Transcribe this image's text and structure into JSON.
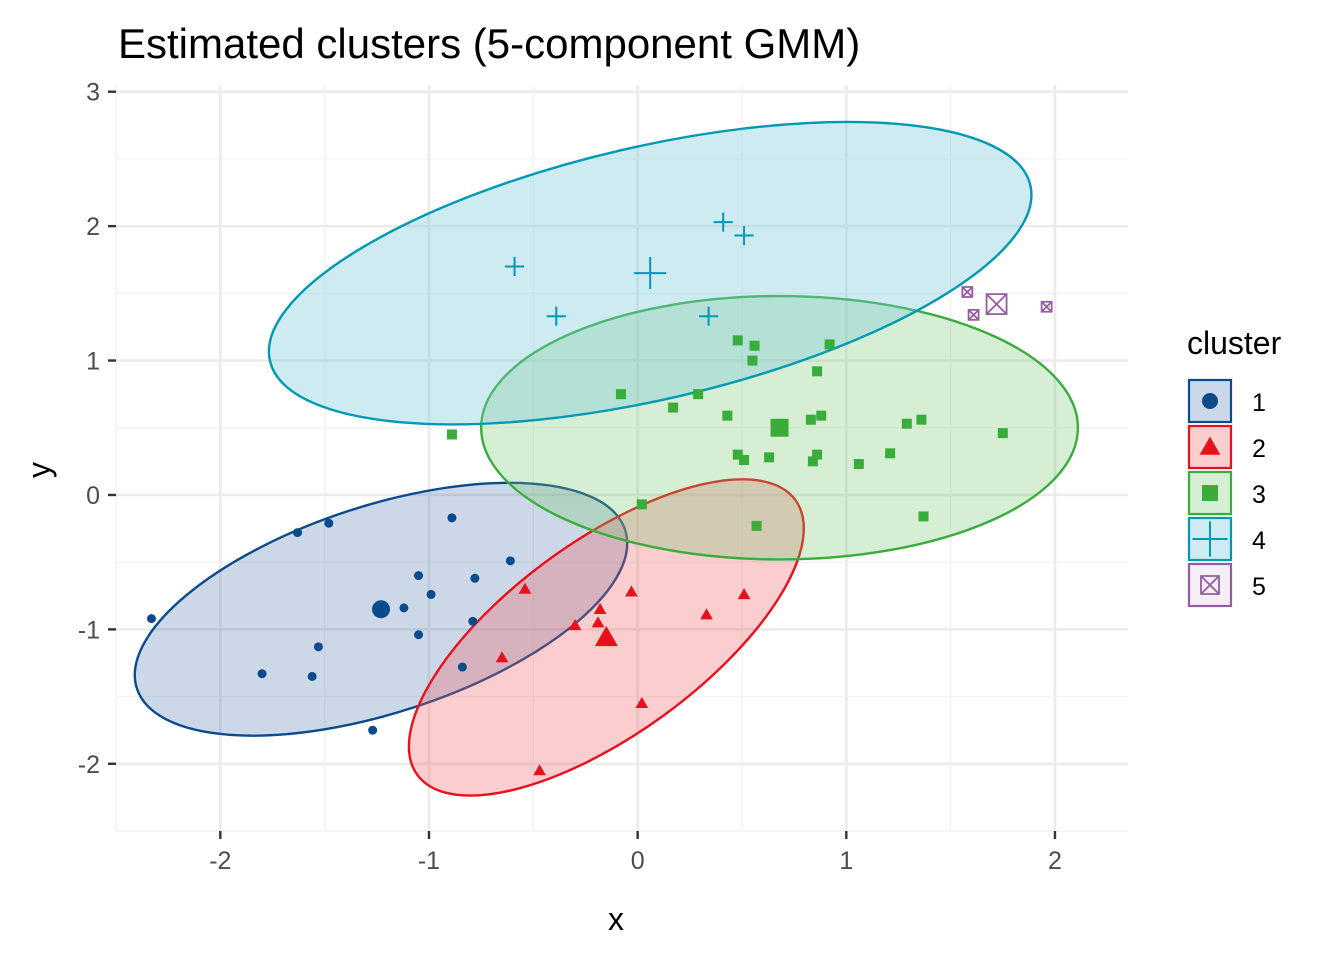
{
  "chart_data": {
    "type": "scatter",
    "title": "Estimated clusters (5-component GMM)",
    "xlabel": "x",
    "ylabel": "y",
    "xlim": [
      -2.5,
      2.35
    ],
    "ylim": [
      -2.5,
      3.05
    ],
    "x_ticks": [
      -2,
      -1,
      0,
      1,
      2
    ],
    "y_ticks": [
      -2,
      -1,
      0,
      1,
      2,
      3
    ],
    "grid": true,
    "legend": {
      "title": "cluster",
      "position": "right"
    },
    "series": [
      {
        "name": "1",
        "color": "#0b4a8b",
        "fill": "rgba(43,91,160,0.24)",
        "shape": "circle",
        "center": [
          -1.23,
          -0.85
        ],
        "ellipse": {
          "rx": 1.23,
          "ry": 0.77,
          "angle": 18
        },
        "points": [
          [
            -2.33,
            -0.92
          ],
          [
            -1.8,
            -1.33
          ],
          [
            -1.63,
            -0.28
          ],
          [
            -1.56,
            -1.35
          ],
          [
            -1.53,
            -1.13
          ],
          [
            -1.48,
            -0.21
          ],
          [
            -1.27,
            -1.75
          ],
          [
            -1.12,
            -0.84
          ],
          [
            -1.05,
            -0.6
          ],
          [
            -1.05,
            -1.04
          ],
          [
            -0.99,
            -0.74
          ],
          [
            -0.89,
            -0.17
          ],
          [
            -0.84,
            -1.28
          ],
          [
            -0.78,
            -0.62
          ],
          [
            -0.79,
            -0.94
          ],
          [
            -0.61,
            -0.49
          ]
        ]
      },
      {
        "name": "2",
        "color": "#e8111b",
        "fill": "rgba(240,90,95,0.30)",
        "shape": "triangle",
        "center": [
          -0.15,
          -1.06
        ],
        "ellipse": {
          "rx": 1.12,
          "ry": 0.72,
          "angle": 36
        },
        "points": [
          [
            -0.54,
            -0.7
          ],
          [
            -0.65,
            -1.21
          ],
          [
            -0.3,
            -0.97
          ],
          [
            -0.18,
            -0.85
          ],
          [
            -0.19,
            -0.95
          ],
          [
            -0.03,
            -0.72
          ],
          [
            0.33,
            -0.89
          ],
          [
            0.51,
            -0.74
          ],
          [
            0.02,
            -1.55
          ],
          [
            -0.47,
            -2.05
          ]
        ]
      },
      {
        "name": "3",
        "color": "#39ac3c",
        "fill": "rgba(120,200,110,0.30)",
        "shape": "square",
        "center": [
          0.68,
          0.5
        ],
        "ellipse": {
          "rx": 1.43,
          "ry": 0.98,
          "angle": 0
        },
        "points": [
          [
            -0.89,
            0.45
          ],
          [
            -0.08,
            0.75
          ],
          [
            0.17,
            0.65
          ],
          [
            0.29,
            0.75
          ],
          [
            0.43,
            0.59
          ],
          [
            0.48,
            1.15
          ],
          [
            0.48,
            0.3
          ],
          [
            0.51,
            0.26
          ],
          [
            0.56,
            1.11
          ],
          [
            0.55,
            1.0
          ],
          [
            0.63,
            0.28
          ],
          [
            0.83,
            0.56
          ],
          [
            0.86,
            0.92
          ],
          [
            0.88,
            0.59
          ],
          [
            0.86,
            0.3
          ],
          [
            0.84,
            0.25
          ],
          [
            0.92,
            1.12
          ],
          [
            1.06,
            0.23
          ],
          [
            1.21,
            0.31
          ],
          [
            1.29,
            0.53
          ],
          [
            1.36,
            0.56
          ],
          [
            1.37,
            -0.16
          ],
          [
            1.75,
            0.46
          ],
          [
            0.02,
            -0.07
          ],
          [
            0.57,
            -0.23
          ]
        ]
      },
      {
        "name": "4",
        "color": "#0099b4",
        "fill": "rgba(120,200,220,0.36)",
        "shape": "plus",
        "center": [
          0.06,
          1.65
        ],
        "ellipse": {
          "rx": 1.87,
          "ry": 0.94,
          "angle": 13
        },
        "points": [
          [
            -0.59,
            1.7
          ],
          [
            -0.39,
            1.33
          ],
          [
            0.34,
            1.33
          ],
          [
            0.41,
            2.03
          ],
          [
            0.51,
            1.93
          ]
        ]
      },
      {
        "name": "5",
        "color": "#925e9f",
        "fill": "rgba(146,94,159,0.10)",
        "shape": "square-cross",
        "center": [
          1.72,
          1.42
        ],
        "points": [
          [
            1.58,
            1.51
          ],
          [
            1.61,
            1.34
          ],
          [
            1.96,
            1.4
          ]
        ]
      }
    ]
  }
}
